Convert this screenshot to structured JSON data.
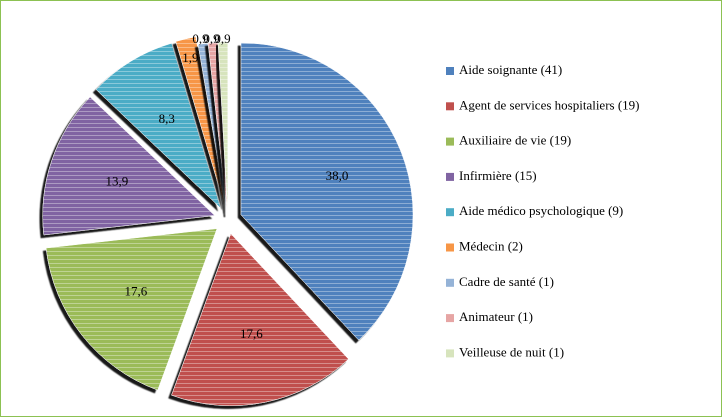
{
  "chart_data": {
    "type": "pie",
    "categories": [
      "Aide soignante (41)",
      "Agent de services hospitaliers (19)",
      "Auxiliaire de vie (19)",
      "Infirmière (15)",
      "Aide médico psychologique (9)",
      "Médecin (2)",
      "Cadre de santé (1)",
      "Animateur (1)",
      "Veilleuse de nuit (1)"
    ],
    "values": [
      38.0,
      17.6,
      17.6,
      13.9,
      8.3,
      1.9,
      0.9,
      0.9,
      0.9
    ],
    "value_labels": [
      "38,0",
      "17,6",
      "17,6",
      "13,9",
      "8,3",
      "1,9",
      "0,9",
      "0,9",
      "0,9"
    ],
    "colors": [
      "#4f81bd",
      "#c0504d",
      "#9bbb59",
      "#8064a2",
      "#4bacc6",
      "#f79646",
      "#95b3d7",
      "#e6a5a4",
      "#d7e4bd"
    ],
    "legend": "right"
  }
}
